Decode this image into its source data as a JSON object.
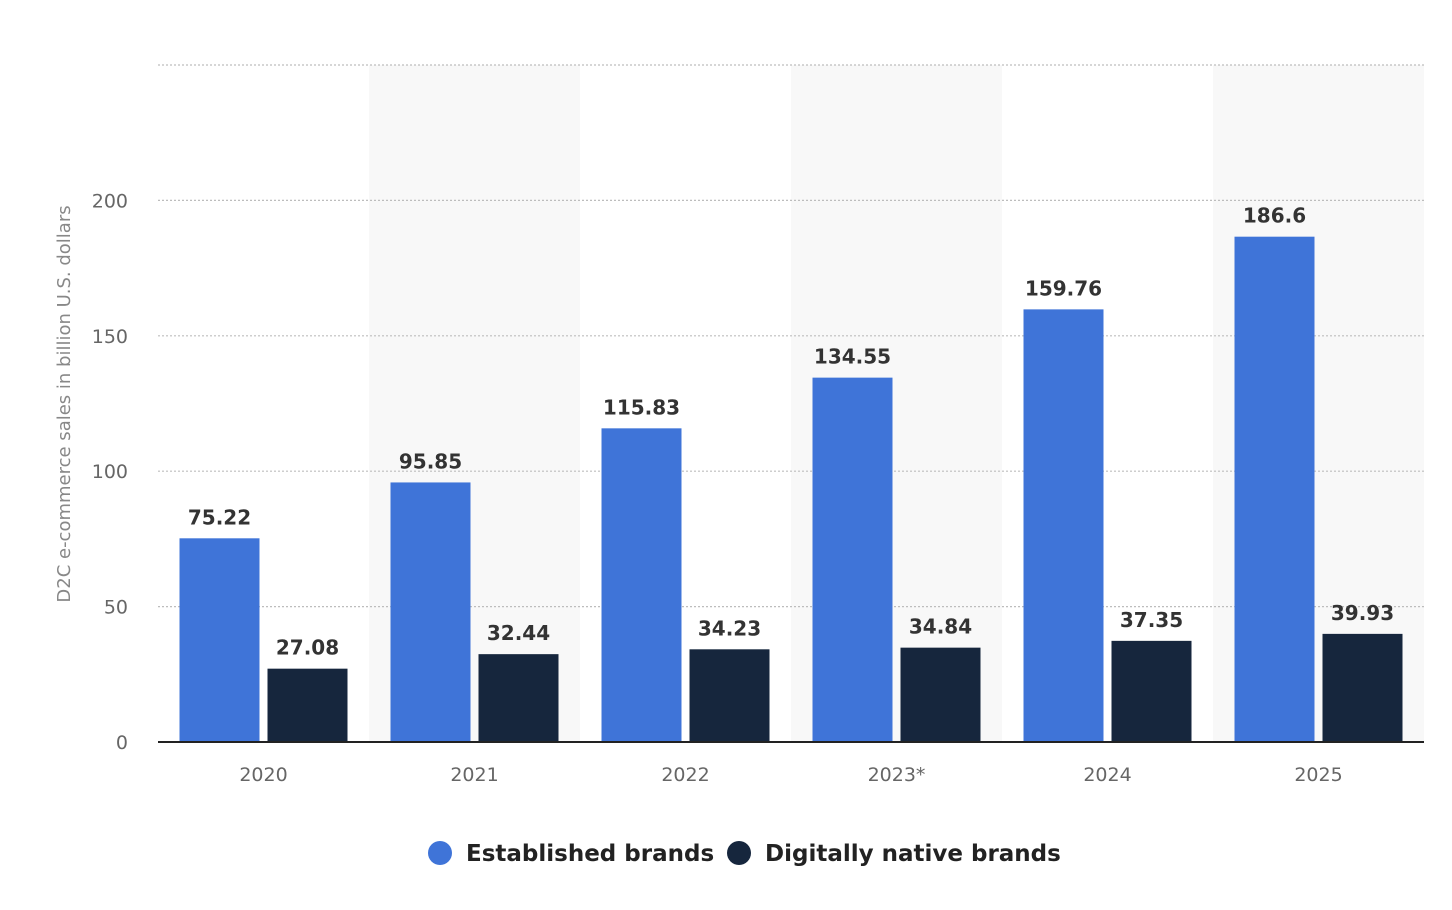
{
  "chart_data": {
    "type": "bar",
    "title": "",
    "xlabel": "",
    "ylabel": "D2C e-commerce sales in billion U.S. dollars",
    "categories": [
      "2020",
      "2021",
      "2022",
      "2023*",
      "2024",
      "2025"
    ],
    "series": [
      {
        "name": "Established brands",
        "color": "#3f74d8",
        "values": [
          75.22,
          95.85,
          115.83,
          134.55,
          159.76,
          186.6
        ]
      },
      {
        "name": "Digitally native brands",
        "color": "#16263d",
        "values": [
          27.08,
          32.44,
          34.23,
          34.84,
          37.35,
          39.93
        ]
      }
    ],
    "ylim": [
      0,
      250
    ],
    "yticks": [
      0,
      50,
      100,
      150,
      200
    ],
    "grid": true,
    "legend_position": "bottom-center",
    "colors": {
      "band": "#f8f8f8",
      "axis": "#222222",
      "grid": "#bdbdbd"
    }
  }
}
